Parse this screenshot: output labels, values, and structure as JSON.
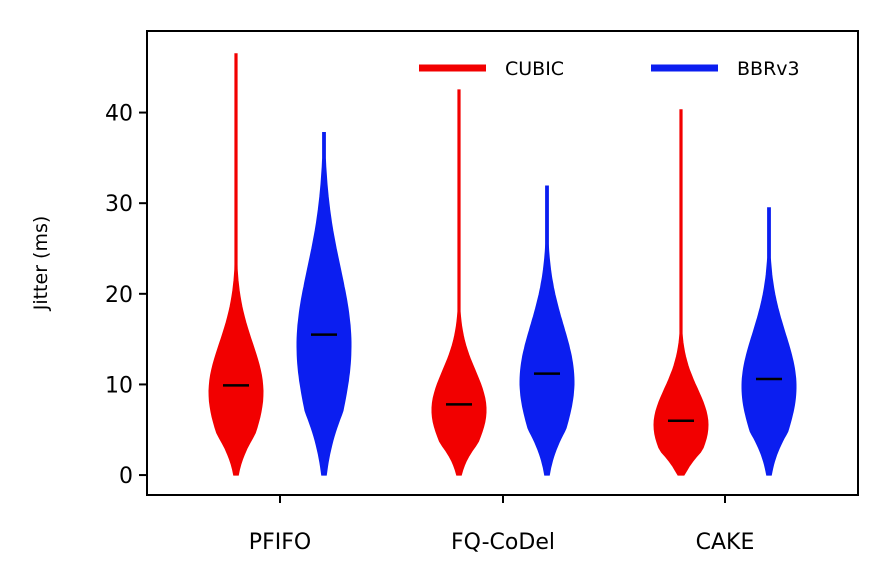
{
  "chart_data": {
    "type": "violin",
    "ylabel": "Jitter (ms)",
    "xlabel": "",
    "ylim": [
      -2.2,
      49
    ],
    "yticks": [
      0,
      10,
      20,
      30,
      40
    ],
    "categories": [
      "PFIFO",
      "FQ-CoDel",
      "CAKE"
    ],
    "legend_position": "top-right",
    "grid": false,
    "series": [
      {
        "name": "CUBIC",
        "color": "#f20000",
        "medians": [
          9.9,
          7.8,
          6.0
        ],
        "min": [
          0,
          0,
          0
        ],
        "max": [
          46.5,
          42.5,
          40.3
        ]
      },
      {
        "name": "BBRv3",
        "color": "#0b1ef0",
        "medians": [
          15.5,
          11.2,
          10.6
        ],
        "min": [
          0,
          0,
          0
        ],
        "max": [
          37.8,
          31.9,
          29.5
        ]
      }
    ]
  }
}
